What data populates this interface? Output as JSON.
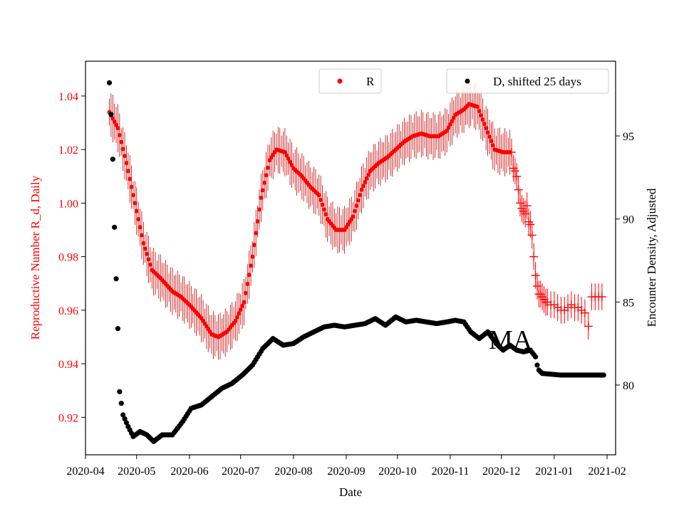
{
  "chart_data": {
    "type": "scatter",
    "xlabel": "Date",
    "ylabel_left": "Reproductive Number R_d, Daily",
    "ylabel_right": "Encounter Density, Adjusted",
    "annotation": "MA",
    "x_range": [
      "2020-04-01",
      "2021-02-06"
    ],
    "ylim_left": [
      0.906,
      1.053
    ],
    "ylim_right": [
      75.8,
      99.5
    ],
    "x_ticks": [
      "2020-04",
      "2020-05",
      "2020-06",
      "2020-07",
      "2020-08",
      "2020-09",
      "2020-10",
      "2020-11",
      "2020-12",
      "2021-01",
      "2021-02"
    ],
    "y_ticks_left": [
      "0.92",
      "0.94",
      "0.96",
      "0.98",
      "1.00",
      "1.02",
      "1.04"
    ],
    "y_ticks_right": [
      "80",
      "85",
      "90",
      "95"
    ],
    "colors": {
      "r_series": "#ff0000",
      "r_error": "#c00000",
      "d_series": "#000000"
    },
    "legend": [
      {
        "label": "R",
        "position": "upper-center",
        "color": "#ff0000"
      },
      {
        "label": "D, shifted 25 days",
        "position": "upper-right",
        "color": "#000000"
      }
    ],
    "series": [
      {
        "name": "R",
        "axis": "left",
        "marker": "dot",
        "error_half_width": 0.005,
        "knots": [
          [
            "2020-04-15",
            1.034
          ],
          [
            "2020-04-20",
            1.028
          ],
          [
            "2020-04-25",
            1.015
          ],
          [
            "2020-04-30",
            1.0
          ],
          [
            "2020-05-05",
            0.985
          ],
          [
            "2020-05-10",
            0.975
          ],
          [
            "2020-05-15",
            0.972
          ],
          [
            "2020-05-22",
            0.967
          ],
          [
            "2020-05-27",
            0.965
          ],
          [
            "2020-06-01",
            0.962
          ],
          [
            "2020-06-08",
            0.957
          ],
          [
            "2020-06-14",
            0.951
          ],
          [
            "2020-06-18",
            0.95
          ],
          [
            "2020-06-23",
            0.952
          ],
          [
            "2020-06-28",
            0.956
          ],
          [
            "2020-07-03",
            0.963
          ],
          [
            "2020-07-08",
            0.98
          ],
          [
            "2020-07-13",
            1.002
          ],
          [
            "2020-07-18",
            1.016
          ],
          [
            "2020-07-22",
            1.02
          ],
          [
            "2020-07-27",
            1.019
          ],
          [
            "2020-08-01",
            1.013
          ],
          [
            "2020-08-06",
            1.01
          ],
          [
            "2020-08-11",
            1.006
          ],
          [
            "2020-08-16",
            1.003
          ],
          [
            "2020-08-21",
            0.994
          ],
          [
            "2020-08-26",
            0.99
          ],
          [
            "2020-08-31",
            0.99
          ],
          [
            "2020-09-05",
            0.995
          ],
          [
            "2020-09-10",
            1.005
          ],
          [
            "2020-09-15",
            1.012
          ],
          [
            "2020-09-20",
            1.015
          ],
          [
            "2020-09-25",
            1.017
          ],
          [
            "2020-09-30",
            1.02
          ],
          [
            "2020-10-05",
            1.023
          ],
          [
            "2020-10-10",
            1.025
          ],
          [
            "2020-10-15",
            1.026
          ],
          [
            "2020-10-20",
            1.025
          ],
          [
            "2020-10-25",
            1.025
          ],
          [
            "2020-10-30",
            1.027
          ],
          [
            "2020-11-04",
            1.033
          ],
          [
            "2020-11-09",
            1.035
          ],
          [
            "2020-11-12",
            1.037
          ],
          [
            "2020-11-17",
            1.036
          ],
          [
            "2020-11-22",
            1.028
          ],
          [
            "2020-11-27",
            1.02
          ],
          [
            "2020-12-02",
            1.019
          ],
          [
            "2020-12-06",
            1.019
          ]
        ]
      },
      {
        "name": "R (crosses)",
        "axis": "left",
        "marker": "plus",
        "error_half_width": 0.005,
        "points": [
          [
            "2020-12-07",
            1.019
          ],
          [
            "2020-12-08",
            1.013
          ],
          [
            "2020-12-09",
            1.012
          ],
          [
            "2020-12-10",
            1.01
          ],
          [
            "2020-12-11",
            1.005
          ],
          [
            "2020-12-12",
            1.0
          ],
          [
            "2020-12-13",
            0.998
          ],
          [
            "2020-12-14",
            0.997
          ],
          [
            "2020-12-15",
            0.996
          ],
          [
            "2020-12-16",
            0.999
          ],
          [
            "2020-12-17",
            0.993
          ],
          [
            "2020-12-18",
            0.992
          ],
          [
            "2020-12-19",
            0.988
          ],
          [
            "2020-12-20",
            0.98
          ],
          [
            "2020-12-21",
            0.973
          ],
          [
            "2020-12-22",
            0.969
          ],
          [
            "2020-12-23",
            0.966
          ],
          [
            "2020-12-24",
            0.966
          ],
          [
            "2020-12-25",
            0.965
          ],
          [
            "2020-12-26",
            0.964
          ],
          [
            "2020-12-27",
            0.963
          ],
          [
            "2020-12-28",
            0.963
          ],
          [
            "2020-12-30",
            0.962
          ],
          [
            "2021-01-01",
            0.962
          ],
          [
            "2021-01-03",
            0.961
          ],
          [
            "2021-01-05",
            0.96
          ],
          [
            "2021-01-07",
            0.96
          ],
          [
            "2021-01-09",
            0.961
          ],
          [
            "2021-01-11",
            0.962
          ],
          [
            "2021-01-13",
            0.961
          ],
          [
            "2021-01-15",
            0.961
          ],
          [
            "2021-01-17",
            0.96
          ],
          [
            "2021-01-19",
            0.959
          ],
          [
            "2021-01-21",
            0.954
          ],
          [
            "2021-01-23",
            0.965
          ],
          [
            "2021-01-25",
            0.965
          ],
          [
            "2021-01-27",
            0.965
          ],
          [
            "2021-01-29",
            0.965
          ]
        ]
      },
      {
        "name": "D, shifted 25 days",
        "axis": "right",
        "marker": "dot",
        "knots": [
          [
            "2020-04-15",
            98.2
          ],
          [
            "2020-04-16",
            96.3
          ],
          [
            "2020-04-17",
            93.6
          ],
          [
            "2020-04-18",
            89.5
          ],
          [
            "2020-04-19",
            86.4
          ],
          [
            "2020-04-20",
            83.4
          ],
          [
            "2020-04-21",
            79.6
          ],
          [
            "2020-04-23",
            78.2
          ],
          [
            "2020-04-26",
            77.5
          ],
          [
            "2020-04-29",
            76.9
          ],
          [
            "2020-05-03",
            77.2
          ],
          [
            "2020-05-07",
            77.0
          ],
          [
            "2020-05-11",
            76.6
          ],
          [
            "2020-05-16",
            77.0
          ],
          [
            "2020-05-22",
            77.0
          ],
          [
            "2020-05-28",
            77.8
          ],
          [
            "2020-06-02",
            78.6
          ],
          [
            "2020-06-08",
            78.8
          ],
          [
            "2020-06-14",
            79.3
          ],
          [
            "2020-06-20",
            79.8
          ],
          [
            "2020-06-26",
            80.1
          ],
          [
            "2020-07-02",
            80.6
          ],
          [
            "2020-07-08",
            81.2
          ],
          [
            "2020-07-14",
            82.2
          ],
          [
            "2020-07-20",
            82.8
          ],
          [
            "2020-07-26",
            82.4
          ],
          [
            "2020-08-01",
            82.5
          ],
          [
            "2020-08-07",
            82.9
          ],
          [
            "2020-08-13",
            83.2
          ],
          [
            "2020-08-19",
            83.5
          ],
          [
            "2020-08-25",
            83.6
          ],
          [
            "2020-08-31",
            83.5
          ],
          [
            "2020-09-06",
            83.6
          ],
          [
            "2020-09-12",
            83.7
          ],
          [
            "2020-09-18",
            84.0
          ],
          [
            "2020-09-24",
            83.6
          ],
          [
            "2020-09-30",
            84.1
          ],
          [
            "2020-10-06",
            83.8
          ],
          [
            "2020-10-12",
            83.9
          ],
          [
            "2020-10-18",
            83.8
          ],
          [
            "2020-10-24",
            83.7
          ],
          [
            "2020-10-30",
            83.8
          ],
          [
            "2020-11-04",
            83.9
          ],
          [
            "2020-11-09",
            83.8
          ],
          [
            "2020-11-13",
            83.2
          ],
          [
            "2020-11-18",
            82.8
          ],
          [
            "2020-11-23",
            83.2
          ],
          [
            "2020-11-28",
            82.5
          ],
          [
            "2020-12-02",
            82.1
          ],
          [
            "2020-12-06",
            82.4
          ],
          [
            "2020-12-10",
            82.1
          ],
          [
            "2020-12-14",
            82.0
          ],
          [
            "2020-12-18",
            82.1
          ],
          [
            "2020-12-21",
            81.7
          ],
          [
            "2020-12-22",
            81.2
          ],
          [
            "2020-12-23",
            80.9
          ],
          [
            "2020-12-25",
            80.7
          ],
          [
            "2021-01-05",
            80.6
          ],
          [
            "2021-01-30",
            80.6
          ]
        ]
      }
    ]
  }
}
